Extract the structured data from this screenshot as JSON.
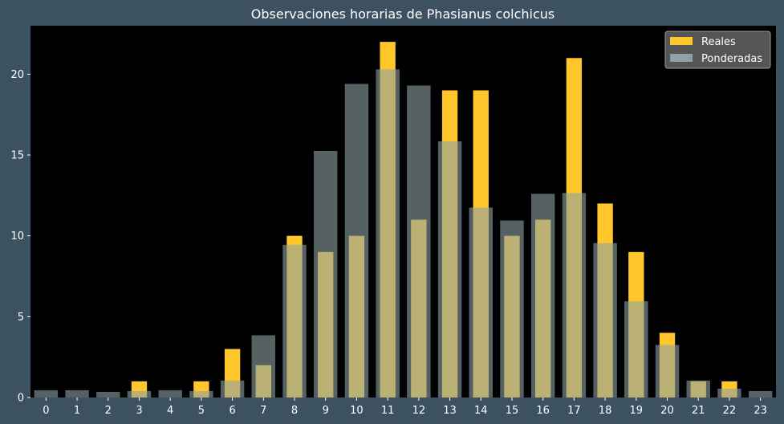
{
  "chart_data": {
    "type": "bar",
    "title": "Observaciones horarias de Phasianus colchicus",
    "xlabel": "",
    "ylabel": "",
    "categories": [
      "0",
      "1",
      "2",
      "3",
      "4",
      "5",
      "6",
      "7",
      "8",
      "9",
      "10",
      "11",
      "12",
      "13",
      "14",
      "15",
      "16",
      "17",
      "18",
      "19",
      "20",
      "21",
      "22",
      "23"
    ],
    "ylim": [
      0,
      23
    ],
    "yticks": [
      0,
      5,
      10,
      15,
      20
    ],
    "series": [
      {
        "name": "Reales",
        "color": "#ffc72c",
        "values": [
          0,
          0,
          0,
          1,
          0,
          1,
          3,
          2,
          10,
          9,
          10,
          22,
          11,
          19,
          19,
          10,
          11,
          21,
          12,
          9,
          4,
          1,
          1,
          0
        ]
      },
      {
        "name": "Ponderadas",
        "color": "#8fa1a6",
        "opacity": 0.6,
        "values": [
          0.45,
          0.45,
          0.35,
          0.4,
          0.45,
          0.4,
          1.05,
          3.85,
          9.45,
          15.25,
          19.4,
          20.3,
          19.3,
          15.85,
          11.75,
          10.95,
          12.6,
          12.65,
          9.55,
          5.95,
          3.25,
          1.05,
          0.55,
          0.4
        ]
      }
    ],
    "legend_position": "top-right",
    "colors": {
      "figure_background": "#3d5260",
      "plot_background": "#000000",
      "text": "#ffffff"
    }
  }
}
